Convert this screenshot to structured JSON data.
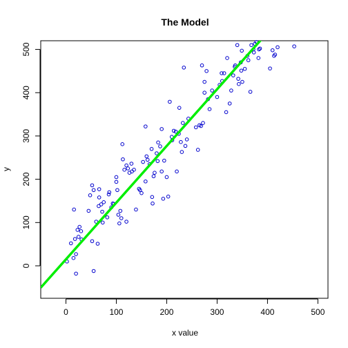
{
  "chart_data": {
    "type": "scatter",
    "title": "The Model",
    "xlabel": "x value",
    "ylabel": "y",
    "xlim": [
      -50,
      520
    ],
    "ylim": [
      -75,
      520
    ],
    "x_ticks": [
      0,
      100,
      200,
      300,
      400,
      500
    ],
    "y_ticks": [
      0,
      100,
      200,
      300,
      400,
      500
    ],
    "grid": false,
    "legend": "none",
    "point_color": "#0000cd",
    "line_color": "#00ee00",
    "points": [
      [
        2,
        10
      ],
      [
        10,
        52
      ],
      [
        15,
        18
      ],
      [
        16,
        130
      ],
      [
        18,
        62
      ],
      [
        20,
        27
      ],
      [
        20,
        -18
      ],
      [
        23,
        83
      ],
      [
        25,
        67
      ],
      [
        27,
        90
      ],
      [
        30,
        80
      ],
      [
        31,
        61
      ],
      [
        45,
        127
      ],
      [
        48,
        163
      ],
      [
        52,
        186
      ],
      [
        52,
        57
      ],
      [
        55,
        175
      ],
      [
        55,
        -12
      ],
      [
        60,
        102
      ],
      [
        63,
        51
      ],
      [
        65,
        138
      ],
      [
        66,
        158
      ],
      [
        66,
        177
      ],
      [
        70,
        142
      ],
      [
        72,
        125
      ],
      [
        73,
        100
      ],
      [
        75,
        147
      ],
      [
        82,
        112
      ],
      [
        85,
        165
      ],
      [
        86,
        170
      ],
      [
        90,
        135
      ],
      [
        93,
        144
      ],
      [
        95,
        143
      ],
      [
        100,
        194
      ],
      [
        100,
        205
      ],
      [
        102,
        175
      ],
      [
        104,
        118
      ],
      [
        106,
        98
      ],
      [
        108,
        127
      ],
      [
        110,
        110
      ],
      [
        112,
        281
      ],
      [
        113,
        246
      ],
      [
        116,
        222
      ],
      [
        120,
        102
      ],
      [
        120,
        232
      ],
      [
        123,
        225
      ],
      [
        126,
        215
      ],
      [
        130,
        236
      ],
      [
        131,
        218
      ],
      [
        135,
        222
      ],
      [
        139,
        130
      ],
      [
        145,
        178
      ],
      [
        147,
        175
      ],
      [
        150,
        168
      ],
      [
        153,
        240
      ],
      [
        158,
        322
      ],
      [
        158,
        195
      ],
      [
        160,
        253
      ],
      [
        162,
        245
      ],
      [
        166,
        235
      ],
      [
        170,
        270
      ],
      [
        171,
        159
      ],
      [
        172,
        144
      ],
      [
        174,
        207
      ],
      [
        176,
        215
      ],
      [
        180,
        260
      ],
      [
        182,
        242
      ],
      [
        183,
        285
      ],
      [
        187,
        276
      ],
      [
        190,
        316
      ],
      [
        190,
        218
      ],
      [
        193,
        155
      ],
      [
        195,
        243
      ],
      [
        200,
        205
      ],
      [
        203,
        160
      ],
      [
        206,
        379
      ],
      [
        210,
        298
      ],
      [
        211,
        290
      ],
      [
        214,
        312
      ],
      [
        218,
        310
      ],
      [
        220,
        218
      ],
      [
        224,
        305
      ],
      [
        225,
        365
      ],
      [
        228,
        286
      ],
      [
        230,
        263
      ],
      [
        232,
        330
      ],
      [
        234,
        458
      ],
      [
        237,
        277
      ],
      [
        240,
        292
      ],
      [
        243,
        340
      ],
      [
        258,
        320
      ],
      [
        262,
        268
      ],
      [
        265,
        325
      ],
      [
        268,
        323
      ],
      [
        270,
        463
      ],
      [
        272,
        330
      ],
      [
        275,
        425
      ],
      [
        275,
        400
      ],
      [
        279,
        450
      ],
      [
        282,
        385
      ],
      [
        285,
        362
      ],
      [
        290,
        405
      ],
      [
        300,
        390
      ],
      [
        305,
        418
      ],
      [
        309,
        445
      ],
      [
        310,
        427
      ],
      [
        314,
        445
      ],
      [
        318,
        355
      ],
      [
        320,
        480
      ],
      [
        325,
        375
      ],
      [
        328,
        405
      ],
      [
        332,
        440
      ],
      [
        335,
        460
      ],
      [
        336,
        463
      ],
      [
        340,
        510
      ],
      [
        342,
        432
      ],
      [
        343,
        420
      ],
      [
        347,
        470
      ],
      [
        348,
        451
      ],
      [
        349,
        497
      ],
      [
        350,
        425
      ],
      [
        355,
        455
      ],
      [
        360,
        485
      ],
      [
        362,
        475
      ],
      [
        366,
        402
      ],
      [
        368,
        510
      ],
      [
        372,
        500
      ],
      [
        373,
        493
      ],
      [
        375,
        513
      ],
      [
        378,
        517
      ],
      [
        382,
        480
      ],
      [
        383,
        500
      ],
      [
        385,
        502
      ],
      [
        405,
        456
      ],
      [
        410,
        498
      ],
      [
        413,
        485
      ],
      [
        415,
        488
      ],
      [
        420,
        505
      ],
      [
        453,
        507
      ]
    ],
    "line": {
      "intercept": 15,
      "slope": 1.31
    }
  }
}
